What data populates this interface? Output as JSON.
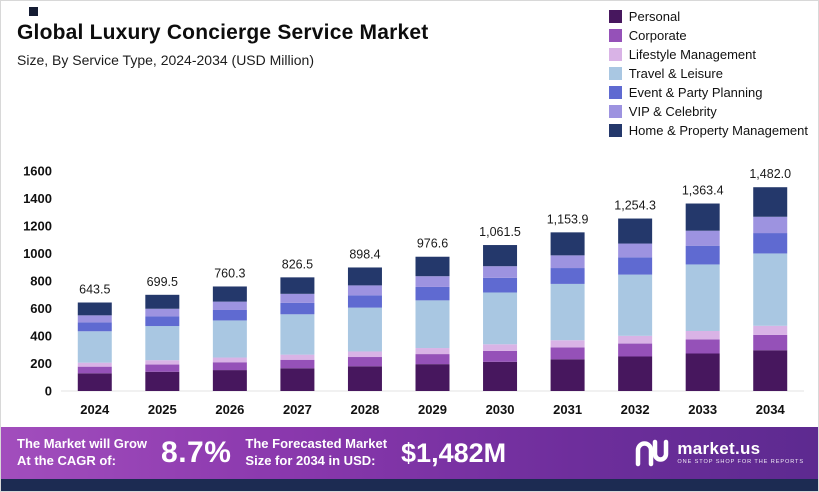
{
  "header": {
    "title": "Global Luxury Concierge Service Market",
    "subtitle": "Size, By Service Type, 2024-2034 (USD Million)"
  },
  "chart_data": {
    "type": "bar",
    "stacked": true,
    "title": "Global Luxury Concierge Service Market",
    "xlabel": "",
    "ylabel": "USD Million",
    "ylim": [
      0,
      1600
    ],
    "yticks": [
      0,
      200,
      400,
      600,
      800,
      1000,
      1200,
      1400,
      1600
    ],
    "grid": false,
    "legend_position": "top-right",
    "categories": [
      "2024",
      "2025",
      "2026",
      "2027",
      "2028",
      "2029",
      "2030",
      "2031",
      "2032",
      "2033",
      "2034"
    ],
    "totals": [
      643.5,
      699.5,
      760.3,
      826.5,
      898.4,
      976.6,
      1061.5,
      1153.9,
      1254.3,
      1363.4,
      1482.0
    ],
    "total_labels": [
      "643.5",
      "699.5",
      "760.3",
      "826.5",
      "898.4",
      "976.6",
      "1,061.5",
      "1,153.9",
      "1,254.3",
      "1,363.4",
      "1,482.0"
    ],
    "series": [
      {
        "name": "Personal",
        "color": "#47175e",
        "values": [
          128.7,
          139.9,
          152.1,
          165.3,
          179.7,
          195.3,
          212.3,
          230.8,
          250.9,
          272.7,
          296.4
        ]
      },
      {
        "name": "Corporate",
        "color": "#9551b8",
        "values": [
          48.3,
          52.5,
          57.0,
          62.0,
          67.4,
          73.2,
          79.6,
          86.5,
          94.1,
          102.3,
          111.2
        ]
      },
      {
        "name": "Lifestyle Management",
        "color": "#d9b3e6",
        "values": [
          29.0,
          31.5,
          34.2,
          37.2,
          40.4,
          43.9,
          47.8,
          51.9,
          56.4,
          61.4,
          66.7
        ]
      },
      {
        "name": "Travel & Leisure",
        "color": "#a9c7e2",
        "values": [
          228.4,
          248.3,
          269.9,
          293.4,
          318.9,
          346.7,
          376.8,
          409.6,
          445.3,
          484.0,
          526.1
        ]
      },
      {
        "name": "Event & Party Planning",
        "color": "#5f6ad1",
        "values": [
          64.4,
          70.0,
          76.0,
          82.7,
          89.8,
          97.7,
          106.2,
          115.4,
          125.4,
          136.3,
          148.2
        ]
      },
      {
        "name": "VIP & Celebrity",
        "color": "#9d93e0",
        "values": [
          51.5,
          56.0,
          60.8,
          66.1,
          71.9,
          78.1,
          84.9,
          92.3,
          100.3,
          109.1,
          118.6
        ]
      },
      {
        "name": "Home & Property Management",
        "color": "#24386b",
        "values": [
          93.3,
          101.4,
          110.2,
          119.8,
          130.3,
          141.6,
          153.9,
          167.3,
          181.9,
          197.7,
          214.9
        ]
      }
    ]
  },
  "banner": {
    "cagr_label_1": "The Market will Grow",
    "cagr_label_2": "At the CAGR of:",
    "cagr_value": "8.7%",
    "forecast_label_1": "The Forecasted Market",
    "forecast_label_2": "Size for 2034 in USD:",
    "forecast_value": "$1,482M",
    "brand_name": "market.us",
    "brand_tagline": "ONE STOP SHOP FOR THE REPORTS"
  }
}
